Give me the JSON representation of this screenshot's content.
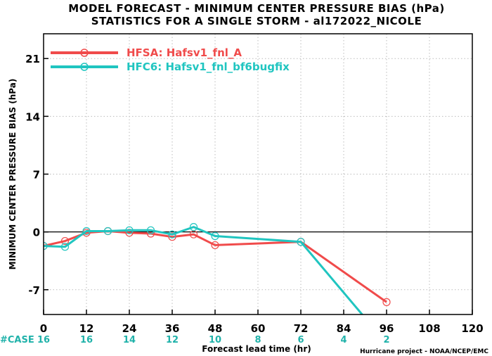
{
  "chart_data": {
    "type": "line",
    "title": "MODEL FORECAST - MINIMUM CENTER PRESSURE BIAS (hPa)",
    "subtitle": "STATISTICS FOR A SINGLE STORM - al172022_NICOLE",
    "xlabel": "Forecast lead time (hr)",
    "ylabel": "MINIMUM CENTER PRESSURE BIAS (hPa)",
    "xlim": [
      0,
      120
    ],
    "ylim": [
      -10,
      24
    ],
    "xticks": [
      0,
      12,
      24,
      36,
      48,
      60,
      72,
      84,
      96,
      108,
      120
    ],
    "yticks": [
      -7,
      0,
      7,
      14,
      21
    ],
    "grid": true,
    "legend_position": "top-left",
    "series": [
      {
        "name": "HFSA: Hafsv1_fnl_A",
        "color": "#f04b4b",
        "x": [
          0,
          6,
          12,
          18,
          24,
          30,
          36,
          42,
          48,
          72,
          96
        ],
        "y": [
          -1.7,
          -1.1,
          -0.1,
          0.1,
          -0.1,
          -0.2,
          -0.6,
          -0.3,
          -1.6,
          -1.2,
          -8.5
        ]
      },
      {
        "name": "HFC6: Hafsv1_fnl_bf6bugfix",
        "color": "#20c5c0",
        "x": [
          0,
          6,
          12,
          18,
          24,
          30,
          36,
          42,
          48,
          72,
          96
        ],
        "y": [
          -1.7,
          -1.8,
          0.1,
          0.1,
          0.2,
          0.2,
          -0.3,
          0.6,
          -0.5,
          -1.2,
          -13.5
        ]
      }
    ],
    "case_label": "#CASE",
    "case_counts": [
      {
        "x": 0,
        "n": "16"
      },
      {
        "x": 12,
        "n": "16"
      },
      {
        "x": 24,
        "n": "14"
      },
      {
        "x": 36,
        "n": "12"
      },
      {
        "x": 48,
        "n": "10"
      },
      {
        "x": 60,
        "n": "8"
      },
      {
        "x": 72,
        "n": "6"
      },
      {
        "x": 84,
        "n": "4"
      },
      {
        "x": 96,
        "n": "2"
      }
    ],
    "credit": "Hurricane project - NOAA/NCEP/EMC"
  }
}
